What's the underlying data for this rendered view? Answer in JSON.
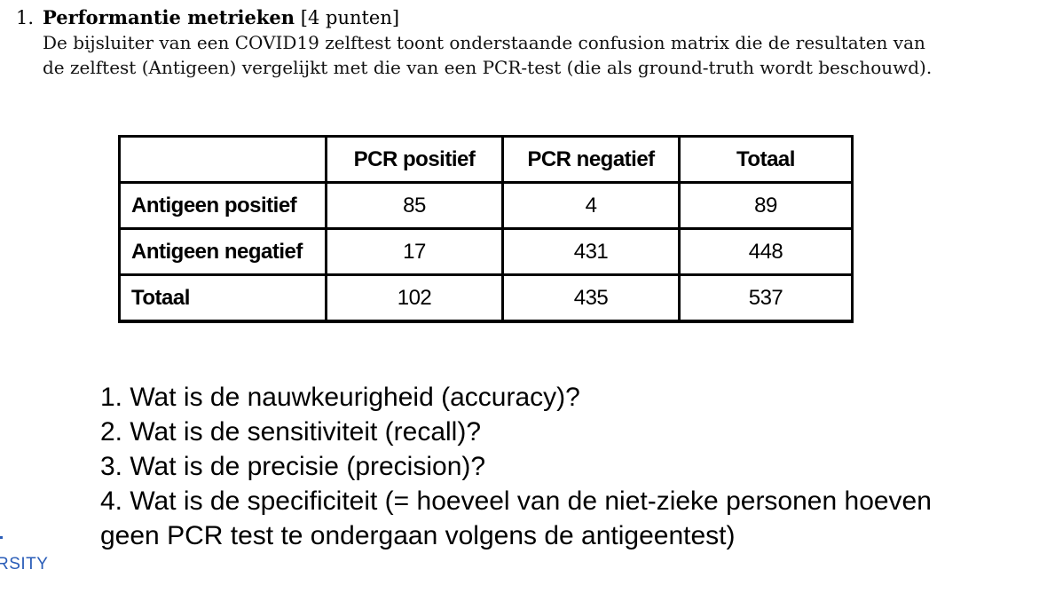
{
  "exercise": {
    "number": "1.",
    "title": "Performantie metrieken",
    "points": "[4 punten]",
    "description_lines": [
      "De bijsluiter van een COVID19 zelftest toont onderstaande confusion matrix die de resultaten van",
      "de zelftest (Antigeen) vergelijkt met die van een PCR-test (die als ground-truth wordt beschouwd)."
    ]
  },
  "table": {
    "corner": "",
    "columns": [
      "PCR positief",
      "PCR negatief",
      "Totaal"
    ],
    "rows": [
      {
        "label": "Antigeen positief",
        "values": [
          "85",
          "4",
          "89"
        ]
      },
      {
        "label": "Antigeen negatief",
        "values": [
          "17",
          "431",
          "448"
        ]
      },
      {
        "label": "Totaal",
        "values": [
          "102",
          "435",
          "537"
        ]
      }
    ]
  },
  "questions": [
    "1. Wat is de nauwkeurigheid (accuracy)?",
    "2. Wat is de sensitiviteit (recall)?",
    "3. Wat is de precisie (precision)?",
    "4. Wat is de specificiteit (= hoeveel van de niet-zieke personen hoeven",
    "geen PCR test te ondergaan volgens de antigeentest)"
  ],
  "footer": {
    "logo_text": "RSITY",
    "brand_color": "#2a5db8"
  }
}
